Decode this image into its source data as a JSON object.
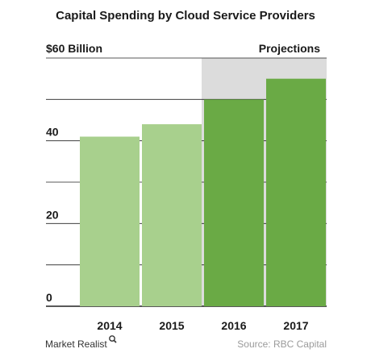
{
  "chart_data": {
    "type": "bar",
    "title": "Capital Spending by Cloud Service Providers",
    "unit_label": "$60 Billion",
    "categories": [
      "2014",
      "2015",
      "2016",
      "2017"
    ],
    "values": [
      41,
      44,
      50,
      55
    ],
    "projected": [
      false,
      false,
      true,
      true
    ],
    "ylim": [
      0,
      60
    ],
    "yticks": [
      0,
      20,
      40
    ],
    "projection_label": "Projections",
    "gridlines": true,
    "colors": {
      "actual": "#a8d08d",
      "projected": "#6aaa45",
      "projection_shade": "#dcdcdc",
      "grid": "#222222"
    }
  },
  "footer": {
    "logo": "Market Realist",
    "source": "Source:  RBC Capital"
  }
}
